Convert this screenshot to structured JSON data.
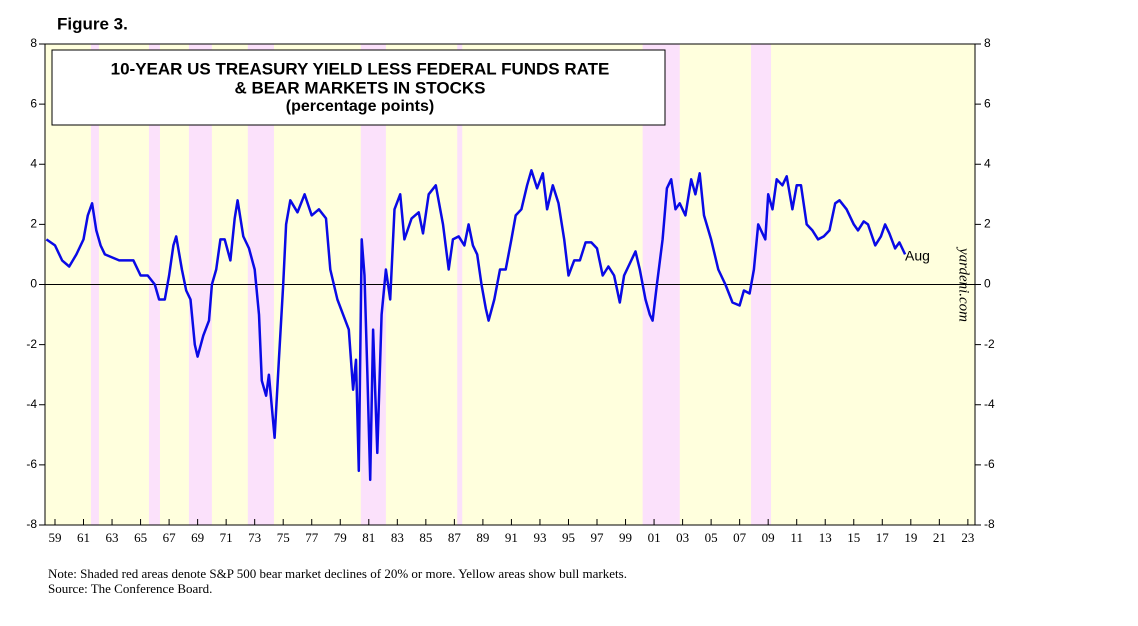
{
  "chart_data": {
    "type": "line",
    "figure_label": "Figure 3.",
    "title": "10-YEAR US TREASURY YIELD LESS FEDERAL FUNDS RATE",
    "title_line2": "& BEAR MARKETS IN STOCKS",
    "subtitle": "(percentage points)",
    "end_label": "Aug",
    "watermark": "yardeni.com",
    "note": "Note: Shaded red areas denote S&P 500 bear market declines of 20% or more. Yellow areas show bull markets.",
    "source": "Source: The Conference Board.",
    "bull_color": "#ffffdd",
    "bear_color": "#fbe1fb",
    "bear_markets": [
      [
        1961.52,
        1962.08
      ],
      [
        1965.59,
        1966.36
      ],
      [
        1968.39,
        1970.0
      ],
      [
        1972.52,
        1974.35
      ],
      [
        1980.44,
        1982.2
      ],
      [
        1987.2,
        1987.55
      ],
      [
        2000.2,
        2002.8
      ],
      [
        2007.8,
        2009.2
      ]
    ],
    "x": [
      1958.4,
      1959.0,
      1959.5,
      1960.0,
      1960.5,
      1961.0,
      1961.3,
      1961.6,
      1961.9,
      1962.2,
      1962.5,
      1963.0,
      1963.5,
      1964.0,
      1964.5,
      1965.0,
      1965.5,
      1966.0,
      1966.3,
      1966.7,
      1967.0,
      1967.3,
      1967.5,
      1967.9,
      1968.2,
      1968.5,
      1968.8,
      1969.0,
      1969.4,
      1969.8,
      1970.0,
      1970.3,
      1970.6,
      1970.9,
      1971.3,
      1971.6,
      1971.8,
      1972.2,
      1972.6,
      1973.0,
      1973.3,
      1973.5,
      1973.8,
      1974.0,
      1974.4,
      1974.7,
      1975.0,
      1975.2,
      1975.5,
      1976.0,
      1976.5,
      1977.0,
      1977.5,
      1978.0,
      1978.3,
      1978.8,
      1979.2,
      1979.6,
      1979.9,
      1980.1,
      1980.3,
      1980.5,
      1980.7,
      1980.9,
      1981.1,
      1981.3,
      1981.6,
      1981.9,
      1982.2,
      1982.5,
      1982.8,
      1983.2,
      1983.5,
      1984.0,
      1984.5,
      1984.8,
      1985.2,
      1985.7,
      1986.2,
      1986.6,
      1986.9,
      1987.3,
      1987.7,
      1988.0,
      1988.3,
      1988.6,
      1988.9,
      1989.2,
      1989.4,
      1989.8,
      1990.2,
      1990.6,
      1991.0,
      1991.3,
      1991.7,
      1992.1,
      1992.4,
      1992.8,
      1993.2,
      1993.5,
      1993.9,
      1994.3,
      1994.7,
      1995.0,
      1995.4,
      1995.8,
      1996.2,
      1996.6,
      1997.0,
      1997.4,
      1997.8,
      1998.2,
      1998.6,
      1998.9,
      1999.3,
      1999.7,
      2000.0,
      2000.4,
      2000.7,
      2000.9,
      2001.2,
      2001.6,
      2001.9,
      2002.2,
      2002.5,
      2002.8,
      2003.2,
      2003.6,
      2003.9,
      2004.2,
      2004.5,
      2005.0,
      2005.5,
      2006.0,
      2006.5,
      2007.0,
      2007.3,
      2007.7,
      2008.0,
      2008.3,
      2008.8,
      2009.0,
      2009.3,
      2009.6,
      2010.0,
      2010.3,
      2010.7,
      2011.0,
      2011.3,
      2011.7,
      2012.1,
      2012.5,
      2012.9,
      2013.3,
      2013.7,
      2014.0,
      2014.5,
      2015.0,
      2015.3,
      2015.7,
      2016.0,
      2016.5,
      2016.9,
      2017.2,
      2017.5,
      2017.9,
      2018.2,
      2018.6
    ],
    "series": [
      {
        "name": "10-year yield less fed funds rate",
        "color": "#0a0ae6",
        "values": [
          1.5,
          1.3,
          0.8,
          0.6,
          1.0,
          1.5,
          2.3,
          2.7,
          1.8,
          1.3,
          1.0,
          0.9,
          0.8,
          0.8,
          0.8,
          0.3,
          0.3,
          0.0,
          -0.5,
          -0.5,
          0.3,
          1.3,
          1.6,
          0.5,
          -0.2,
          -0.5,
          -2.0,
          -2.4,
          -1.7,
          -1.2,
          0.0,
          0.5,
          1.5,
          1.5,
          0.8,
          2.2,
          2.8,
          1.6,
          1.2,
          0.5,
          -1.0,
          -3.2,
          -3.7,
          -3.0,
          -5.1,
          -2.5,
          0.0,
          2.0,
          2.8,
          2.4,
          3.0,
          2.3,
          2.5,
          2.2,
          0.5,
          -0.5,
          -1.0,
          -1.5,
          -3.5,
          -2.5,
          -6.2,
          1.5,
          0.3,
          -3.0,
          -6.5,
          -1.5,
          -5.6,
          -1.0,
          0.5,
          -0.5,
          2.5,
          3.0,
          1.5,
          2.2,
          2.4,
          1.7,
          3.0,
          3.3,
          2.0,
          0.5,
          1.5,
          1.6,
          1.3,
          2.0,
          1.3,
          1.0,
          0.0,
          -0.8,
          -1.2,
          -0.5,
          0.5,
          0.5,
          1.5,
          2.3,
          2.5,
          3.3,
          3.8,
          3.2,
          3.7,
          2.5,
          3.3,
          2.7,
          1.5,
          0.3,
          0.8,
          0.8,
          1.4,
          1.4,
          1.2,
          0.3,
          0.6,
          0.3,
          -0.6,
          0.3,
          0.7,
          1.1,
          0.5,
          -0.5,
          -1.0,
          -1.2,
          0.0,
          1.5,
          3.2,
          3.5,
          2.5,
          2.7,
          2.3,
          3.5,
          3.0,
          3.7,
          2.3,
          1.5,
          0.5,
          0.0,
          -0.6,
          -0.7,
          -0.2,
          -0.3,
          0.5,
          2.0,
          1.5,
          3.0,
          2.5,
          3.5,
          3.3,
          3.6,
          2.5,
          3.3,
          3.3,
          2.0,
          1.8,
          1.5,
          1.6,
          1.8,
          2.7,
          2.8,
          2.5,
          2.0,
          1.8,
          2.1,
          2.0,
          1.3,
          1.6,
          2.0,
          1.7,
          1.2,
          1.4,
          1.0
        ]
      }
    ],
    "xlim": [
      1958.3,
      2023.5
    ],
    "xticks": [
      {
        "value": 1959,
        "label": "59"
      },
      {
        "value": 1961,
        "label": "61"
      },
      {
        "value": 1963,
        "label": "63"
      },
      {
        "value": 1965,
        "label": "65"
      },
      {
        "value": 1967,
        "label": "67"
      },
      {
        "value": 1969,
        "label": "69"
      },
      {
        "value": 1971,
        "label": "71"
      },
      {
        "value": 1973,
        "label": "73"
      },
      {
        "value": 1975,
        "label": "75"
      },
      {
        "value": 1977,
        "label": "77"
      },
      {
        "value": 1979,
        "label": "79"
      },
      {
        "value": 1981,
        "label": "81"
      },
      {
        "value": 1983,
        "label": "83"
      },
      {
        "value": 1985,
        "label": "85"
      },
      {
        "value": 1987,
        "label": "87"
      },
      {
        "value": 1989,
        "label": "89"
      },
      {
        "value": 1991,
        "label": "91"
      },
      {
        "value": 1993,
        "label": "93"
      },
      {
        "value": 1995,
        "label": "95"
      },
      {
        "value": 1997,
        "label": "97"
      },
      {
        "value": 1999,
        "label": "99"
      },
      {
        "value": 2001,
        "label": "01"
      },
      {
        "value": 2003,
        "label": "03"
      },
      {
        "value": 2005,
        "label": "05"
      },
      {
        "value": 2007,
        "label": "07"
      },
      {
        "value": 2009,
        "label": "09"
      },
      {
        "value": 2011,
        "label": "11"
      },
      {
        "value": 2013,
        "label": "13"
      },
      {
        "value": 2015,
        "label": "15"
      },
      {
        "value": 2017,
        "label": "17"
      },
      {
        "value": 2019,
        "label": "19"
      },
      {
        "value": 2021,
        "label": "21"
      },
      {
        "value": 2023,
        "label": "23"
      }
    ],
    "ylim": [
      -8,
      8
    ],
    "yticks": [
      -8,
      -6,
      -4,
      -2,
      0,
      2,
      4,
      6,
      8
    ],
    "y2lim": [
      -8,
      8
    ],
    "y2ticks": [
      -8,
      -6,
      -4,
      -2,
      0,
      2,
      4,
      6,
      8
    ],
    "zero_line": true
  }
}
